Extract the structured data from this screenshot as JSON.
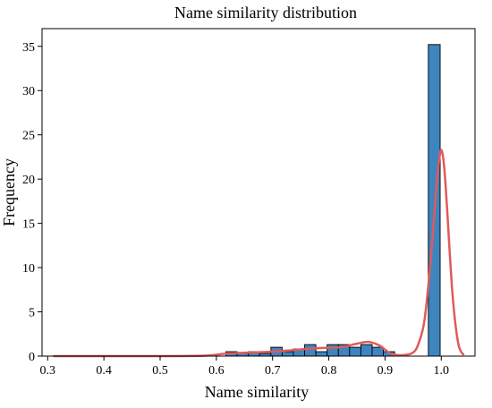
{
  "chart_data": {
    "type": "bar",
    "title": "Name similarity distribution",
    "xlabel": "Name similarity",
    "ylabel": "Frequency",
    "xlim": [
      0.29,
      1.06
    ],
    "ylim": [
      0,
      37
    ],
    "xticks": [
      "0.3",
      "0.4",
      "0.5",
      "0.6",
      "0.7",
      "0.8",
      "0.9",
      "1.0"
    ],
    "yticks": [
      "0",
      "5",
      "10",
      "15",
      "20",
      "25",
      "30",
      "35"
    ],
    "grid": false,
    "colors": {
      "bar_fill": "#3e85bf",
      "bar_edge": "#000000",
      "kde_line": "#e05a5c"
    },
    "bins": [
      {
        "x0": 0.617,
        "x1": 0.637,
        "count": 0.5
      },
      {
        "x0": 0.637,
        "x1": 0.657,
        "count": 0.3
      },
      {
        "x0": 0.657,
        "x1": 0.677,
        "count": 0.5
      },
      {
        "x0": 0.677,
        "x1": 0.697,
        "count": 0.3
      },
      {
        "x0": 0.697,
        "x1": 0.717,
        "count": 1.0
      },
      {
        "x0": 0.717,
        "x1": 0.737,
        "count": 0.5
      },
      {
        "x0": 0.737,
        "x1": 0.757,
        "count": 0.8
      },
      {
        "x0": 0.757,
        "x1": 0.777,
        "count": 1.3
      },
      {
        "x0": 0.777,
        "x1": 0.797,
        "count": 0.5
      },
      {
        "x0": 0.797,
        "x1": 0.817,
        "count": 1.3
      },
      {
        "x0": 0.817,
        "x1": 0.837,
        "count": 1.3
      },
      {
        "x0": 0.837,
        "x1": 0.857,
        "count": 1.0
      },
      {
        "x0": 0.857,
        "x1": 0.877,
        "count": 1.3
      },
      {
        "x0": 0.877,
        "x1": 0.897,
        "count": 1.0
      },
      {
        "x0": 0.897,
        "x1": 0.917,
        "count": 0.5
      },
      {
        "x0": 0.917,
        "x1": 0.937,
        "count": 0
      },
      {
        "x0": 0.937,
        "x1": 0.957,
        "count": 0
      },
      {
        "x0": 0.957,
        "x1": 0.977,
        "count": 0
      },
      {
        "x0": 0.977,
        "x1": 0.998,
        "count": 35.2
      }
    ],
    "kde": {
      "x": [
        0.31,
        0.4,
        0.5,
        0.58,
        0.62,
        0.66,
        0.7,
        0.74,
        0.78,
        0.82,
        0.85,
        0.87,
        0.89,
        0.91,
        0.93,
        0.95,
        0.96,
        0.97,
        0.98,
        0.99,
        0.995,
        1.0,
        1.005,
        1.01,
        1.02,
        1.03,
        1.04
      ],
      "y": [
        0,
        0,
        0,
        0.05,
        0.3,
        0.4,
        0.5,
        0.7,
        0.9,
        1.0,
        1.4,
        1.6,
        1.2,
        0.3,
        0.1,
        0.4,
        1.5,
        4.0,
        10.0,
        18.0,
        21.5,
        23.3,
        21.5,
        17.0,
        7.0,
        1.5,
        0.1
      ]
    }
  }
}
